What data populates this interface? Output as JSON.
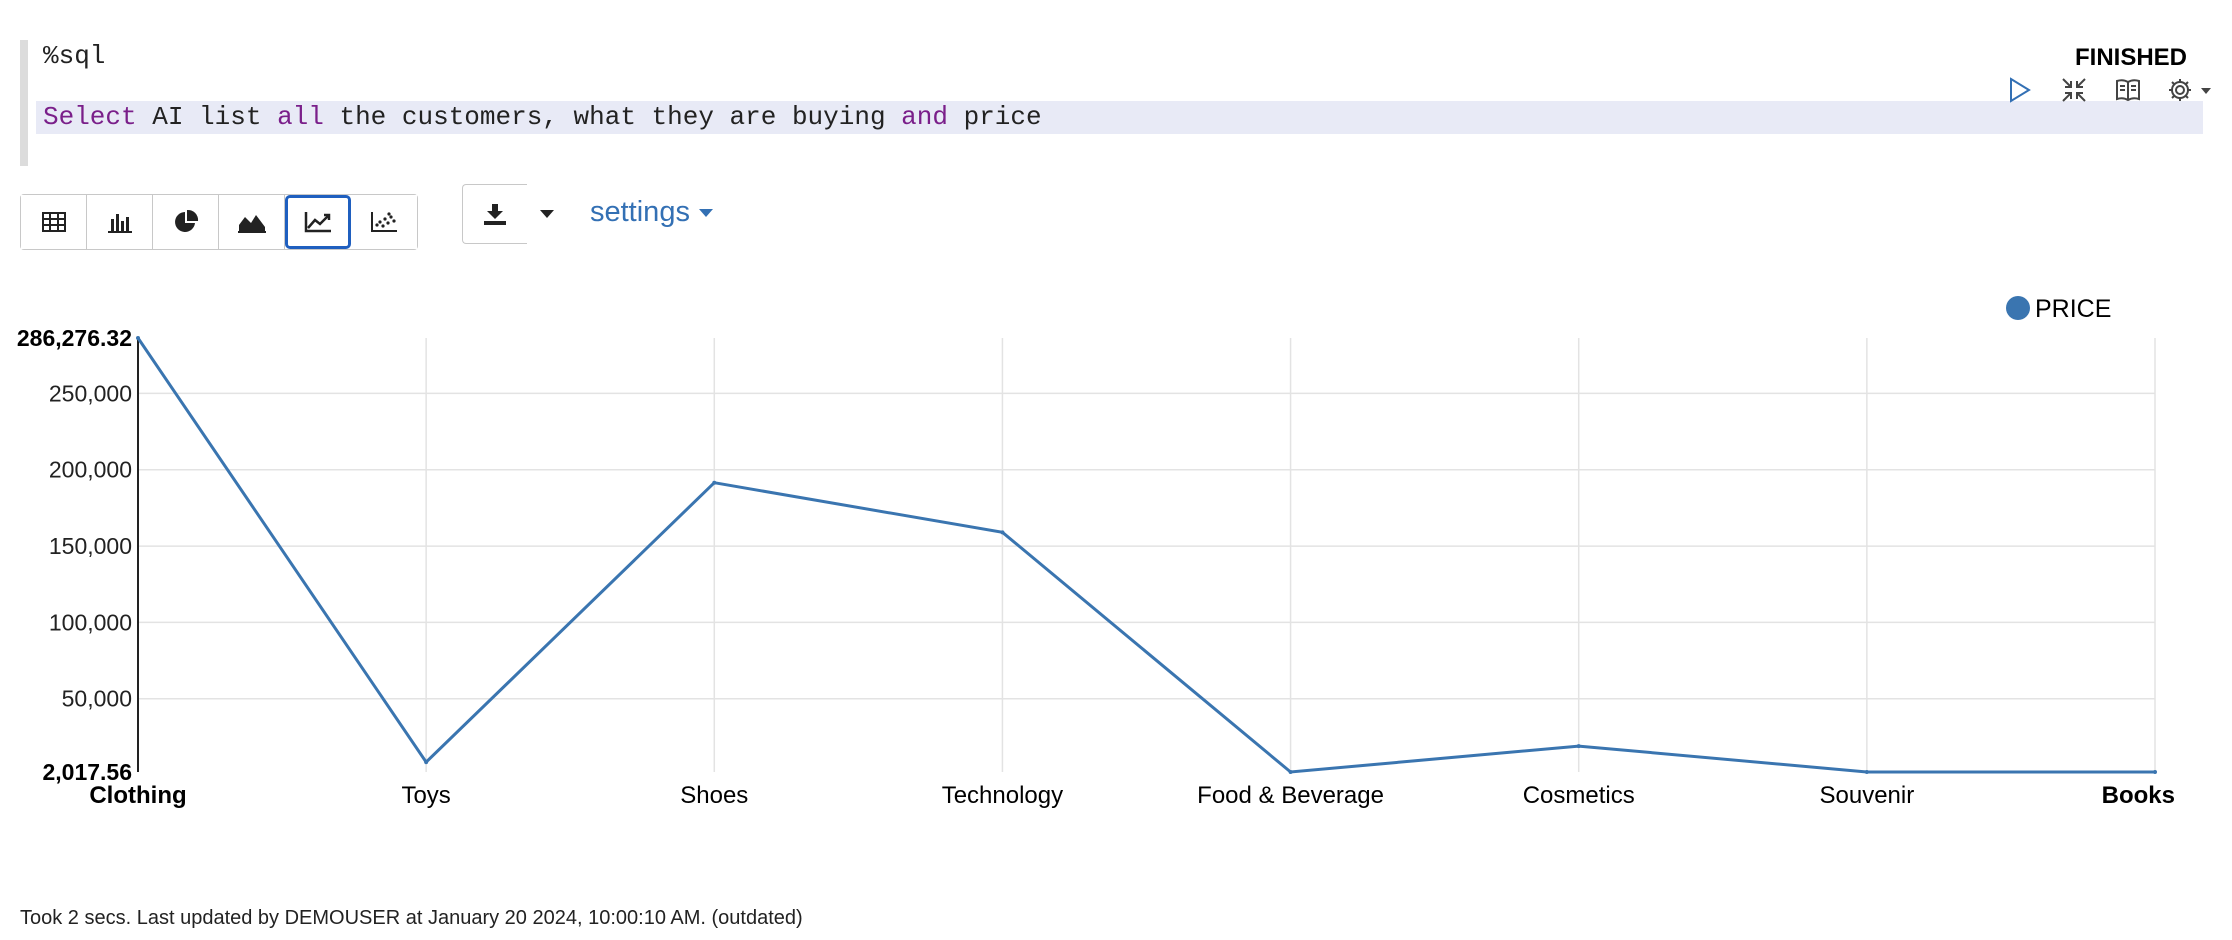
{
  "editor": {
    "line1": "%sql",
    "line2_tokens": [
      {
        "text": "Select",
        "kw": true
      },
      {
        "text": " AI list ",
        "kw": false
      },
      {
        "text": "all",
        "kw": true
      },
      {
        "text": " the customers, what they are buying ",
        "kw": false
      },
      {
        "text": "and",
        "kw": true
      },
      {
        "text": " price",
        "kw": false
      }
    ]
  },
  "status": "FINISHED",
  "paragraph_controls": [
    "run-icon",
    "collapse-icon",
    "book-icon",
    "gear-icon"
  ],
  "toolbar": {
    "vis_buttons": [
      {
        "name": "table-icon",
        "active": false
      },
      {
        "name": "bar-chart-icon",
        "active": false
      },
      {
        "name": "pie-chart-icon",
        "active": false
      },
      {
        "name": "area-chart-icon",
        "active": false
      },
      {
        "name": "line-chart-icon",
        "active": true
      },
      {
        "name": "scatter-chart-icon",
        "active": false
      }
    ],
    "download_icon": "download-icon",
    "settings_label": "settings"
  },
  "chart_data": {
    "type": "line",
    "categories": [
      "Clothing",
      "Toys",
      "Shoes",
      "Technology",
      "Food & Beverage",
      "Cosmetics",
      "Souvenir",
      "Books"
    ],
    "series": [
      {
        "name": "PRICE",
        "values": [
          286276.32,
          8500,
          191500,
          159000,
          2017.56,
          19000,
          2017.56,
          2017.56
        ]
      }
    ],
    "ylim": [
      2017.56,
      286276.32
    ],
    "y_ticks": [
      50000,
      100000,
      150000,
      200000,
      250000
    ],
    "y_min_label": "2,017.56",
    "y_max_label": "286,276.32",
    "tick_labels": [
      "50,000",
      "100,000",
      "150,000",
      "200,000",
      "250,000"
    ],
    "grid": true,
    "legend_position": "top-right",
    "color": "#3a75b0"
  },
  "footer": "Took 2 secs. Last updated by DEMOUSER at January 20 2024, 10:00:10 AM. (outdated)"
}
